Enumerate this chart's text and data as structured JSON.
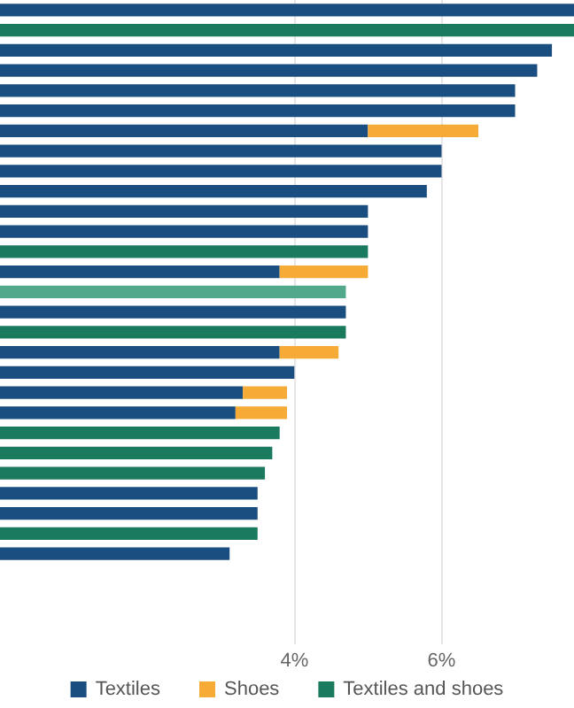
{
  "chart_data": {
    "type": "bar",
    "orientation": "horizontal",
    "stacked": true,
    "categories": [
      null,
      null,
      null,
      null,
      null,
      null,
      null,
      null,
      null,
      null,
      null,
      null,
      null,
      null,
      null,
      null,
      null,
      null,
      null,
      null,
      null,
      null,
      null,
      null,
      null,
      null,
      null,
      null,
      null,
      null,
      null,
      null
    ],
    "series": [
      {
        "name": "Textiles",
        "color": "#1a4e80",
        "values": [
          7.8,
          null,
          7.5,
          7.3,
          7.0,
          7.0,
          5.0,
          6.0,
          6.0,
          5.8,
          5.0,
          5.0,
          null,
          3.8,
          null,
          4.7,
          null,
          3.8,
          4.0,
          3.3,
          3.2,
          null,
          null,
          null,
          3.5,
          3.5,
          null,
          3.12,
          null,
          null,
          null,
          null
        ]
      },
      {
        "name": "Shoes",
        "color": "#f5ab35",
        "values": [
          null,
          null,
          null,
          null,
          null,
          null,
          1.5,
          null,
          null,
          null,
          null,
          null,
          null,
          1.2,
          null,
          null,
          null,
          0.8,
          null,
          0.6,
          0.7,
          null,
          null,
          null,
          null,
          null,
          null,
          null,
          null,
          null,
          null,
          null
        ]
      },
      {
        "name": "Textiles and shoes",
        "color": "#1a7a5e",
        "colors": [
          "#1a7a5e",
          "#1a7a5e",
          "#1a7a5e",
          "#1a7a5e",
          "#1a7a5e",
          "#1a7a5e",
          "#1a7a5e",
          "#1a7a5e",
          "#1a7a5e",
          "#1a7a5e",
          "#1a7a5e",
          "#1a7a5e",
          "#1a7a5e",
          "#1a7a5e",
          "#52a88b",
          "#1a7a5e",
          "#1a7a5e",
          "#1a7a5e",
          "#1a7a5e",
          "#1a7a5e",
          "#1a7a5e",
          "#1a7a5e",
          "#1a7a5e",
          "#1a7a5e",
          "#1a7a5e",
          "#1a7a5e",
          "#1a7a5e",
          "#1a7a5e",
          "#1a7a5e",
          "#1a7a5e",
          "#1a7a5e",
          "#1a7a5e"
        ],
        "values": [
          null,
          7.8,
          null,
          null,
          null,
          null,
          null,
          null,
          null,
          null,
          null,
          null,
          5.0,
          null,
          4.7,
          null,
          4.7,
          null,
          null,
          null,
          null,
          3.8,
          3.7,
          3.6,
          null,
          null,
          3.5,
          null,
          null,
          null,
          null,
          null
        ]
      }
    ],
    "xlim": [
      0,
      7.8
    ],
    "xticks": [
      {
        "value": 4,
        "label": "4%"
      },
      {
        "value": 6,
        "label": "6%"
      }
    ],
    "grid": "x",
    "legend": "bottom",
    "tick_labels": "x"
  }
}
